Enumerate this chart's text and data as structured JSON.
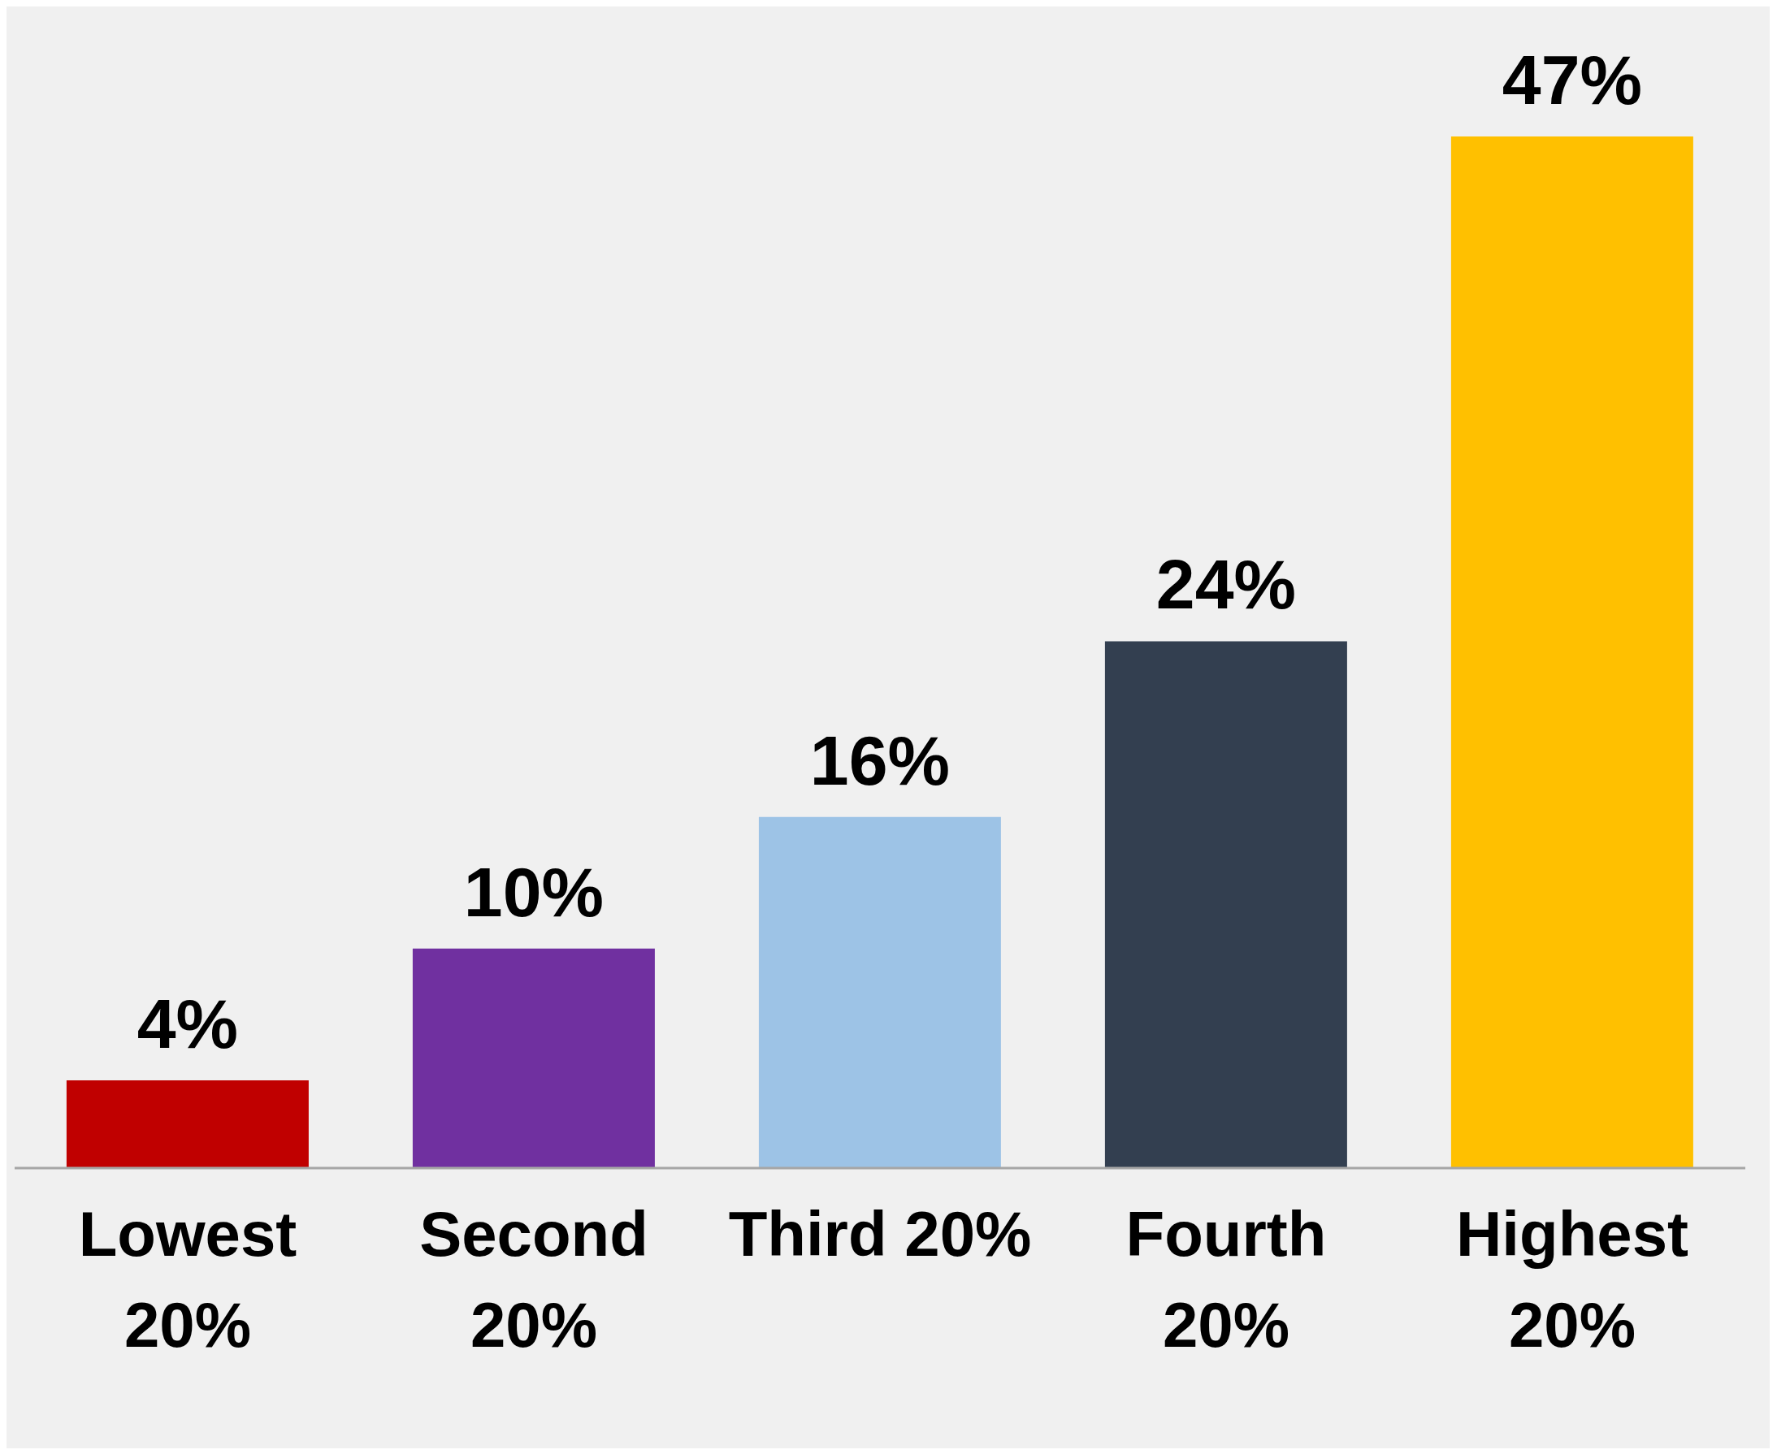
{
  "chart_data": {
    "type": "bar",
    "categories": [
      "Lowest 20%",
      "Second 20%",
      "Third 20%",
      "Fourth 20%",
      "Highest 20%"
    ],
    "values": [
      4,
      10,
      16,
      24,
      47
    ],
    "colors": [
      "#c00000",
      "#7030a0",
      "#9dc3e6",
      "#333f50",
      "#ffc000"
    ],
    "value_labels": [
      "4%",
      "10%",
      "16%",
      "24%",
      "47%"
    ]
  }
}
